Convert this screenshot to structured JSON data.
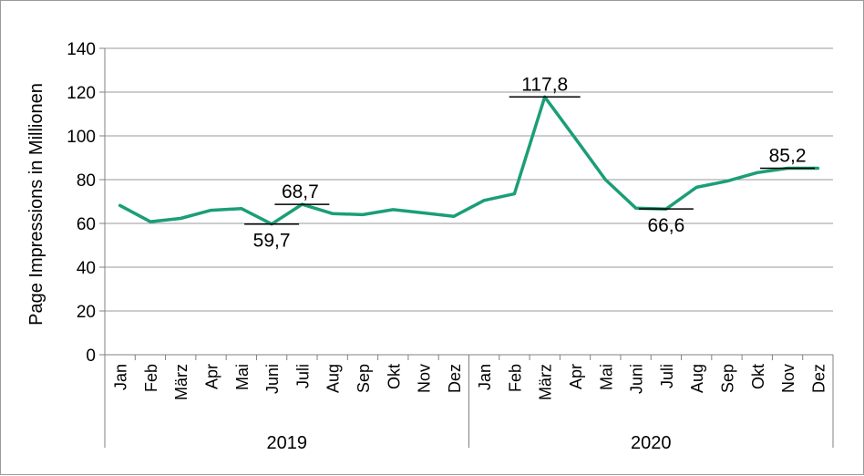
{
  "chart_data": {
    "type": "line",
    "title": "",
    "xlabel": "",
    "ylabel": "Page Impressions in Millionen",
    "ylim": [
      0,
      140
    ],
    "yticks": [
      0,
      20,
      40,
      60,
      80,
      100,
      120,
      140
    ],
    "grid": true,
    "line_color": "#1b9e77",
    "groups": [
      {
        "name": "2019",
        "months": [
          "Jan",
          "Feb",
          "März",
          "Apr",
          "Mai",
          "Juni",
          "Juli",
          "Aug",
          "Sep",
          "Okt",
          "Nov",
          "Dez"
        ]
      },
      {
        "name": "2020",
        "months": [
          "Jan",
          "Feb",
          "März",
          "Apr",
          "Mai",
          "Juni",
          "Juli",
          "Aug",
          "Sep",
          "Okt",
          "Nov",
          "Dez"
        ]
      }
    ],
    "series": [
      {
        "name": "Page Impressions",
        "values": [
          68.2,
          60.8,
          62.3,
          66.0,
          66.8,
          59.7,
          68.7,
          64.5,
          64.0,
          66.3,
          64.8,
          63.2,
          70.5,
          73.5,
          117.8,
          99.0,
          80.0,
          67.0,
          66.6,
          76.5,
          79.3,
          83.2,
          85.2,
          85.2
        ]
      }
    ],
    "annotations": [
      {
        "index": 5,
        "text": "59,7",
        "position": "below"
      },
      {
        "index": 6,
        "text": "68,7",
        "position": "above"
      },
      {
        "index": 14,
        "text": "117,8",
        "position": "above"
      },
      {
        "index": 18,
        "text": "66,6",
        "position": "below"
      },
      {
        "index": 22,
        "text": "85,2",
        "position": "above"
      }
    ]
  }
}
